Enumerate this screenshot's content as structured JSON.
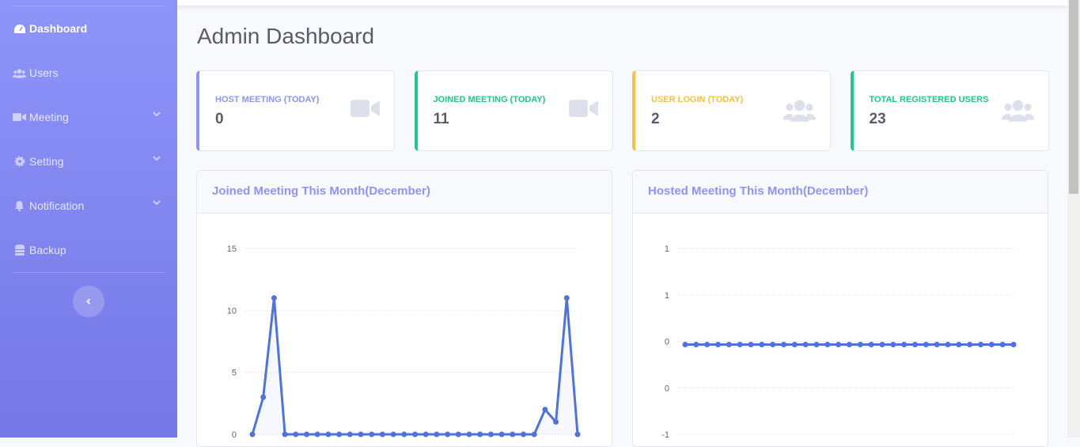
{
  "sidebar": {
    "items": [
      {
        "label": "Dashboard",
        "icon": "tachometer-icon",
        "active": true
      },
      {
        "label": "Users",
        "icon": "users-icon"
      },
      {
        "label": "Meeting",
        "icon": "video-icon",
        "expandable": true
      },
      {
        "label": "Setting",
        "icon": "gear-icon",
        "expandable": true
      },
      {
        "label": "Notification",
        "icon": "bell-icon",
        "expandable": true
      },
      {
        "label": "Backup",
        "icon": "database-icon"
      }
    ]
  },
  "page": {
    "title": "Admin Dashboard"
  },
  "cards": [
    {
      "label": "Host Meeting (Today)",
      "value": "0",
      "color": "#8e95f9",
      "icon": "video-icon"
    },
    {
      "label": "Joined Meeting (Today)",
      "value": "11",
      "color": "#1cc88a",
      "icon": "video-icon"
    },
    {
      "label": "User Login (Today)",
      "value": "2",
      "color": "#f6c23e",
      "icon": "users-icon"
    },
    {
      "label": "Total Registered Users",
      "value": "23",
      "color": "#1cc88a",
      "icon": "users-icon"
    }
  ],
  "chart_data": [
    {
      "type": "area",
      "title": "Joined Meeting This Month(December)",
      "yticks": [
        "0",
        "5",
        "10",
        "15"
      ],
      "ylim": [
        0,
        15
      ],
      "grid": true,
      "color": "#4e73df",
      "values": [
        0,
        3,
        11,
        0,
        0,
        0,
        0,
        0,
        0,
        0,
        0,
        0,
        0,
        0,
        0,
        0,
        0,
        0,
        0,
        0,
        0,
        0,
        0,
        0,
        0,
        0,
        0,
        2,
        1,
        11,
        0
      ]
    },
    {
      "type": "line",
      "title": "Hosted Meeting This Month(December)",
      "yticks": [
        "-1",
        "0",
        "0",
        "1",
        "1"
      ],
      "ylim": [
        -1,
        1
      ],
      "grid": true,
      "color": "#4e73df",
      "values": [
        0,
        0,
        0,
        0,
        0,
        0,
        0,
        0,
        0,
        0,
        0,
        0,
        0,
        0,
        0,
        0,
        0,
        0,
        0,
        0,
        0,
        0,
        0,
        0,
        0,
        0,
        0,
        0,
        0,
        0,
        0
      ]
    }
  ]
}
